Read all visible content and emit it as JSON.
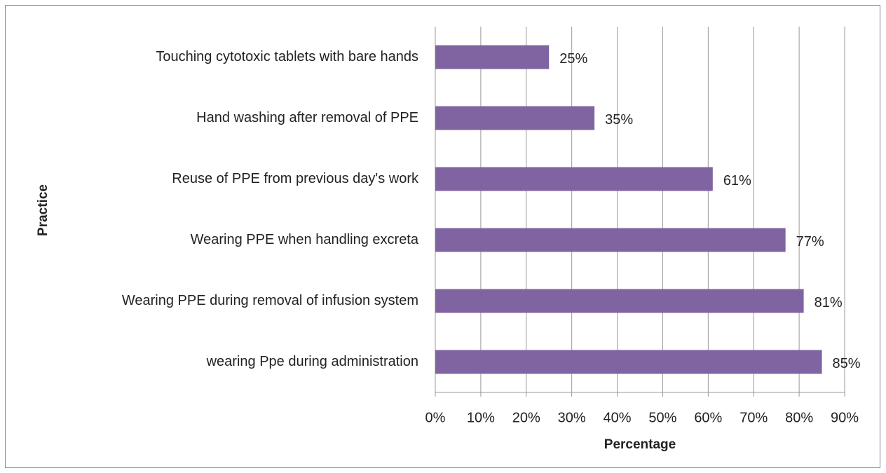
{
  "chart_data": {
    "type": "barh",
    "categories": [
      "Touching cytotoxic tablets with bare hands",
      "Hand washing after removal of PPE",
      "Reuse of PPE from previous day's work",
      "Wearing PPE when handling excreta",
      "Wearing PPE during removal of infusion system",
      "wearing Ppe during administration"
    ],
    "values": [
      25,
      35,
      61,
      77,
      81,
      85
    ],
    "value_labels": [
      "25%",
      "35%",
      "61%",
      "77%",
      "81%",
      "85%"
    ],
    "color": "#8064a2",
    "x_label": "Percentage",
    "y_label": "Practice",
    "xlim": [
      0,
      90
    ],
    "xticks": [
      {
        "value": 0,
        "label": "0%"
      },
      {
        "value": 10,
        "label": "10%"
      },
      {
        "value": 20,
        "label": "20%"
      },
      {
        "value": 30,
        "label": "30%"
      },
      {
        "value": 40,
        "label": "40%"
      },
      {
        "value": 50,
        "label": "50%"
      },
      {
        "value": 60,
        "label": "60%"
      },
      {
        "value": 70,
        "label": "70%"
      },
      {
        "value": 80,
        "label": "80%"
      },
      {
        "value": 90,
        "label": "90%"
      }
    ],
    "grid": true
  }
}
